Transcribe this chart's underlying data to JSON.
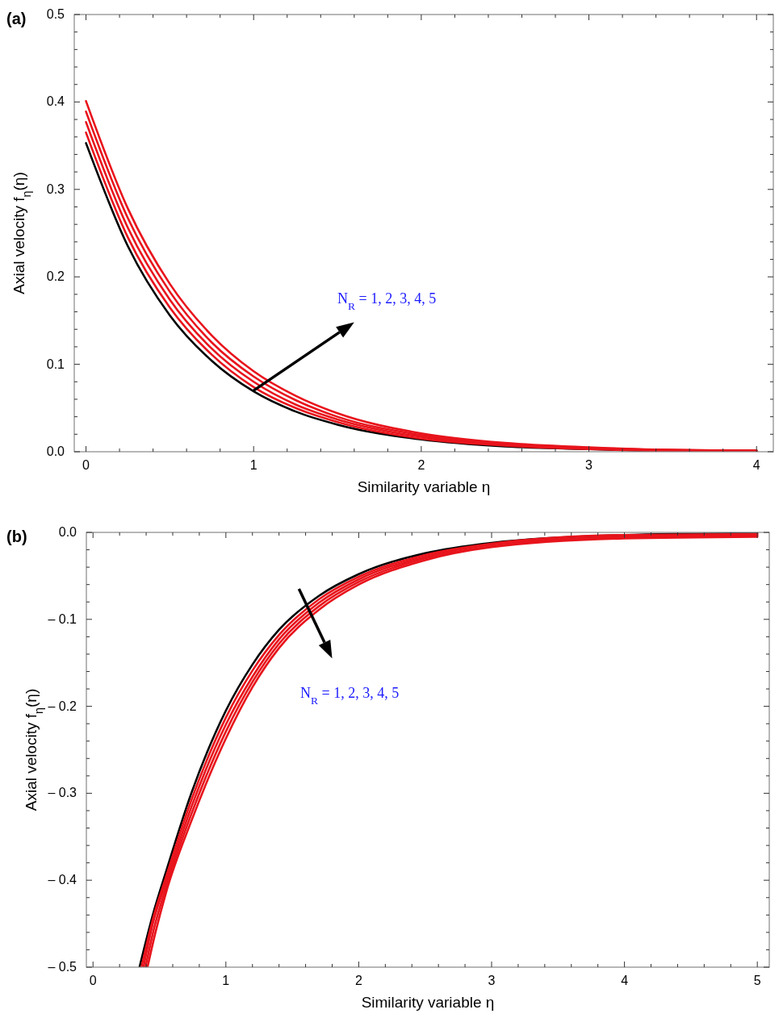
{
  "chart_data": [
    {
      "type": "line",
      "title": "(a)",
      "xlabel": "Similarity variable η",
      "ylabel": "Axial velocity f$_{η}$(η)",
      "annotations": [
        "N$_{R}$ = 1, 2, 3, 4, 5"
      ],
      "xlim": [
        -0.07,
        4.1
      ],
      "ylim": [
        0,
        0.5
      ],
      "xticks": [
        0,
        {
          "value": 0.2,
          "label": null
        },
        {
          "value": 0.4,
          "label": null
        },
        {
          "value": 0.6,
          "label": null
        },
        {
          "value": 0.8,
          "label": null
        },
        1,
        {
          "value": 1.2,
          "label": null
        },
        {
          "value": 1.4,
          "label": null
        },
        {
          "value": 1.6,
          "label": null
        },
        {
          "value": 1.8,
          "label": null
        },
        2,
        {
          "value": 2.2,
          "label": null
        },
        {
          "value": 2.4,
          "label": null
        },
        {
          "value": 2.6,
          "label": null
        },
        {
          "value": 2.8,
          "label": null
        },
        3,
        {
          "value": 3.2,
          "label": null
        },
        {
          "value": 3.4,
          "label": null
        },
        {
          "value": 3.6,
          "label": null
        },
        {
          "value": 3.8,
          "label": null
        },
        4
      ],
      "yticks": [
        {
          "value": 0,
          "label": "0.0"
        },
        {
          "value": 0.02,
          "label": null
        },
        {
          "value": 0.04,
          "label": null
        },
        {
          "value": 0.06,
          "label": null
        },
        {
          "value": 0.08,
          "label": null
        },
        0.1,
        {
          "value": 0.12,
          "label": null
        },
        {
          "value": 0.14,
          "label": null
        },
        {
          "value": 0.16,
          "label": null
        },
        {
          "value": 0.18,
          "label": null
        },
        0.2,
        {
          "value": 0.22,
          "label": null
        },
        {
          "value": 0.24,
          "label": null
        },
        {
          "value": 0.26,
          "label": null
        },
        {
          "value": 0.28,
          "label": null
        },
        0.3,
        {
          "value": 0.32,
          "label": null
        },
        {
          "value": 0.34,
          "label": null
        },
        {
          "value": 0.36,
          "label": null
        },
        {
          "value": 0.38,
          "label": null
        },
        0.4,
        {
          "value": 0.42,
          "label": null
        },
        {
          "value": 0.44,
          "label": null
        },
        {
          "value": 0.46,
          "label": null
        },
        {
          "value": 0.48,
          "label": null
        },
        0.5
      ],
      "x": [
        0,
        0.25,
        0.5,
        0.75,
        1,
        1.25,
        1.5,
        2,
        2.5,
        3,
        3.5,
        4
      ],
      "series": [
        {
          "color": "#000000",
          "values": [
            0.353,
            0.235,
            0.156,
            0.104,
            0.069,
            0.046,
            0.031,
            0.014,
            0.006,
            0.003,
            0.001,
            0.001
          ]
        },
        {
          "color": "#e8141c",
          "values": [
            0.365,
            0.245,
            0.165,
            0.111,
            0.074,
            0.05,
            0.034,
            0.015,
            0.007,
            0.003,
            0.001,
            0.001
          ]
        },
        {
          "color": "#e8141c",
          "values": [
            0.377,
            0.256,
            0.174,
            0.118,
            0.08,
            0.054,
            0.037,
            0.017,
            0.008,
            0.004,
            0.002,
            0.001
          ]
        },
        {
          "color": "#e8141c",
          "values": [
            0.389,
            0.267,
            0.183,
            0.125,
            0.086,
            0.059,
            0.04,
            0.019,
            0.009,
            0.004,
            0.002,
            0.001
          ]
        },
        {
          "color": "#e8141c",
          "values": [
            0.401,
            0.278,
            0.192,
            0.133,
            0.092,
            0.064,
            0.044,
            0.021,
            0.01,
            0.005,
            0.002,
            0.001
          ]
        }
      ]
    },
    {
      "type": "line",
      "title": "(b)",
      "xlabel": "Similarity variable η",
      "ylabel": "Axial velocity f$_{η}$(η)",
      "annotations": [
        "N$_{R}$ = 1, 2, 3, 4, 5"
      ],
      "xlim": [
        -0.05,
        5.09
      ],
      "ylim": [
        -0.5,
        0
      ],
      "xticks": [
        0,
        {
          "value": 0.2,
          "label": null
        },
        {
          "value": 0.4,
          "label": null
        },
        {
          "value": 0.6,
          "label": null
        },
        {
          "value": 0.8,
          "label": null
        },
        1,
        {
          "value": 1.2,
          "label": null
        },
        {
          "value": 1.4,
          "label": null
        },
        {
          "value": 1.6,
          "label": null
        },
        {
          "value": 1.8,
          "label": null
        },
        2,
        {
          "value": 2.2,
          "label": null
        },
        {
          "value": 2.4,
          "label": null
        },
        {
          "value": 2.6,
          "label": null
        },
        {
          "value": 2.8,
          "label": null
        },
        3,
        {
          "value": 3.2,
          "label": null
        },
        {
          "value": 3.4,
          "label": null
        },
        {
          "value": 3.6,
          "label": null
        },
        {
          "value": 3.8,
          "label": null
        },
        4,
        {
          "value": 4.2,
          "label": null
        },
        {
          "value": 4.4,
          "label": null
        },
        {
          "value": 4.6,
          "label": null
        },
        {
          "value": 4.8,
          "label": null
        },
        5
      ],
      "yticks": [
        {
          "value": -0.5,
          "label": "– 0.5"
        },
        {
          "value": -0.48,
          "label": null
        },
        {
          "value": -0.46,
          "label": null
        },
        {
          "value": -0.44,
          "label": null
        },
        {
          "value": -0.42,
          "label": null
        },
        {
          "value": -0.4,
          "label": "– 0.4"
        },
        {
          "value": -0.38,
          "label": null
        },
        {
          "value": -0.36,
          "label": null
        },
        {
          "value": -0.34,
          "label": null
        },
        {
          "value": -0.32,
          "label": null
        },
        {
          "value": -0.3,
          "label": "– 0.3"
        },
        {
          "value": -0.28,
          "label": null
        },
        {
          "value": -0.26,
          "label": null
        },
        {
          "value": -0.24,
          "label": null
        },
        {
          "value": -0.22,
          "label": null
        },
        {
          "value": -0.2,
          "label": "– 0.2"
        },
        {
          "value": -0.18,
          "label": null
        },
        {
          "value": -0.16,
          "label": null
        },
        {
          "value": -0.14,
          "label": null
        },
        {
          "value": -0.12,
          "label": null
        },
        {
          "value": -0.1,
          "label": "– 0.1"
        },
        {
          "value": -0.08,
          "label": null
        },
        {
          "value": -0.06,
          "label": null
        },
        {
          "value": -0.04,
          "label": null
        },
        {
          "value": -0.02,
          "label": null
        },
        {
          "value": 0,
          "label": "0.0"
        }
      ],
      "series": [
        {
          "color": "#000000",
          "x": [
            0.35,
            0.45,
            0.55,
            0.74,
            1.0,
            1.2,
            1.4,
            1.7,
            2,
            2.5,
            3,
            4,
            5
          ],
          "values": [
            -0.5,
            -0.44,
            -0.39,
            -0.3,
            -0.205,
            -0.152,
            -0.112,
            -0.073,
            -0.048,
            -0.024,
            -0.012,
            -0.003,
            -0.001
          ]
        },
        {
          "color": "#e8141c",
          "x": [
            0.365,
            0.45,
            0.55,
            0.74,
            1.0,
            1.2,
            1.4,
            1.7,
            2,
            2.5,
            3,
            4,
            5
          ],
          "values": [
            -0.5,
            -0.445,
            -0.396,
            -0.308,
            -0.213,
            -0.159,
            -0.118,
            -0.077,
            -0.051,
            -0.026,
            -0.013,
            -0.003,
            -0.002
          ]
        },
        {
          "color": "#e8141c",
          "x": [
            0.38,
            0.45,
            0.55,
            0.74,
            1.0,
            1.2,
            1.4,
            1.7,
            2,
            2.5,
            3,
            4,
            5
          ],
          "values": [
            -0.5,
            -0.45,
            -0.402,
            -0.316,
            -0.221,
            -0.166,
            -0.123,
            -0.081,
            -0.054,
            -0.028,
            -0.014,
            -0.005,
            -0.003
          ]
        },
        {
          "color": "#e8141c",
          "x": [
            0.395,
            0.46,
            0.55,
            0.74,
            1.0,
            1.2,
            1.4,
            1.7,
            2,
            2.5,
            3,
            4,
            5
          ],
          "values": [
            -0.5,
            -0.455,
            -0.408,
            -0.324,
            -0.229,
            -0.172,
            -0.128,
            -0.085,
            -0.057,
            -0.03,
            -0.016,
            -0.006,
            -0.004
          ]
        },
        {
          "color": "#e8141c",
          "x": [
            0.41,
            0.47,
            0.55,
            0.74,
            1.0,
            1.2,
            1.4,
            1.7,
            2,
            2.5,
            3,
            4,
            5
          ],
          "values": [
            -0.5,
            -0.46,
            -0.414,
            -0.332,
            -0.237,
            -0.178,
            -0.133,
            -0.089,
            -0.06,
            -0.032,
            -0.017,
            -0.007,
            -0.005
          ]
        }
      ]
    }
  ]
}
